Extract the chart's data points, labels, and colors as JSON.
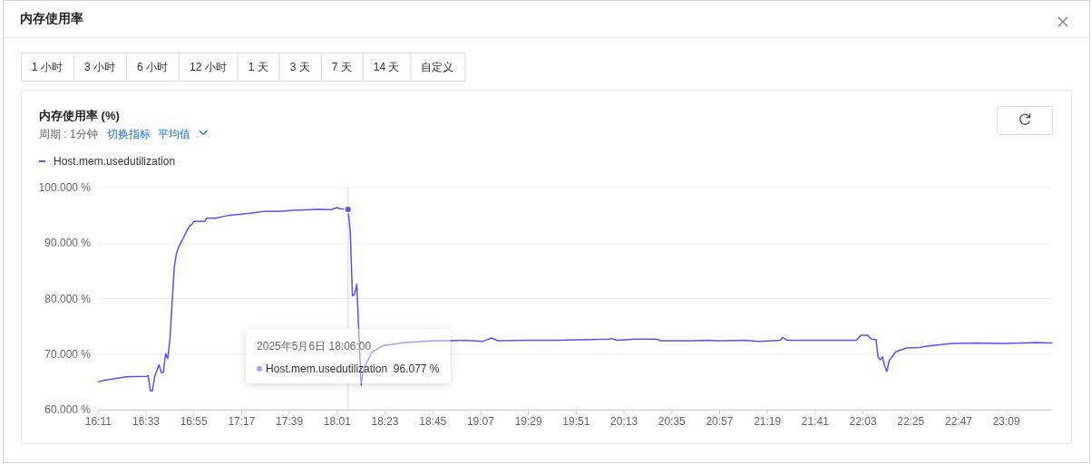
{
  "chart_data": {
    "type": "line",
    "title": "内存使用率 (%)",
    "subtitle": "周期 : 1分钟",
    "annotations": [
      "内存使用率",
      "1 小时",
      "3 小时",
      "6 小时",
      "12 小时",
      "1 天",
      "3 天",
      "7 天",
      "14 天",
      "自定义",
      "切换指标",
      "平均值",
      "2025年5月6日 18:06:00\nHost.mem.usedutilization  96.077 %"
    ],
    "x": [
      "2025-05-06T16:11",
      "2025-05-06T16:14",
      "2025-05-06T16:24",
      "2025-05-06T16:33",
      "2025-05-06T16:34",
      "2025-05-06T16:35",
      "2025-05-06T16:36",
      "2025-05-06T16:37",
      "2025-05-06T16:39",
      "2025-05-06T16:40",
      "2025-05-06T16:41",
      "2025-05-06T16:42",
      "2025-05-06T16:43",
      "2025-05-06T16:44",
      "2025-05-06T16:45",
      "2025-05-06T16:46",
      "2025-05-06T16:47",
      "2025-05-06T16:48",
      "2025-05-06T16:50",
      "2025-05-06T16:52",
      "2025-05-06T16:53",
      "2025-05-06T16:54",
      "2025-05-06T16:55",
      "2025-05-06T17:00",
      "2025-05-06T17:01",
      "2025-05-06T17:05",
      "2025-05-06T17:11",
      "2025-05-06T17:16",
      "2025-05-06T17:21",
      "2025-05-06T17:27",
      "2025-05-06T17:34",
      "2025-05-06T17:41",
      "2025-05-06T17:53",
      "2025-05-06T17:58",
      "2025-05-06T18:01",
      "2025-05-06T18:02",
      "2025-05-06T18:06",
      "2025-05-06T18:07",
      "2025-05-06T18:08",
      "2025-05-06T18:09",
      "2025-05-06T18:10",
      "2025-05-06T18:12",
      "2025-05-06T18:13",
      "2025-05-06T18:17",
      "2025-05-06T18:22",
      "2025-05-06T18:32",
      "2025-05-06T18:46",
      "2025-05-06T18:53",
      "2025-05-06T19:00",
      "2025-05-06T19:08",
      "2025-05-06T19:12",
      "2025-05-06T19:15",
      "2025-05-06T19:28",
      "2025-05-06T19:42",
      "2025-05-06T19:56",
      "2025-05-06T20:06",
      "2025-05-06T20:07",
      "2025-05-06T20:10",
      "2025-05-06T20:18",
      "2025-05-06T20:28",
      "2025-05-06T20:30",
      "2025-05-06T20:44",
      "2025-05-06T20:51",
      "2025-05-06T20:57",
      "2025-05-06T21:09",
      "2025-05-06T21:15",
      "2025-05-06T21:25",
      "2025-05-06T21:26",
      "2025-05-06T21:28",
      "2025-05-06T21:45",
      "2025-05-06T22:00",
      "2025-05-06T22:02",
      "2025-05-06T22:05",
      "2025-05-06T22:07",
      "2025-05-06T22:09",
      "2025-05-06T22:10",
      "2025-05-06T22:11",
      "2025-05-06T22:12",
      "2025-05-06T22:13",
      "2025-05-06T22:14",
      "2025-05-06T22:15",
      "2025-05-06T22:18",
      "2025-05-06T22:23",
      "2025-05-06T22:29",
      "2025-05-06T22:34",
      "2025-05-06T22:44",
      "2025-05-06T22:55",
      "2025-05-06T23:08",
      "2025-05-06T23:23",
      "2025-05-06T23:30"
    ],
    "series": [
      {
        "name": "Host.mem.usedutilization",
        "color": "#5b50f3",
        "values": [
          65.0,
          65.3,
          65.9,
          66.0,
          66.1,
          63.4,
          63.4,
          66.0,
          68.1,
          66.7,
          66.7,
          70.1,
          69.2,
          72.6,
          79.1,
          85.6,
          88.1,
          89.3,
          90.8,
          92.4,
          93.1,
          93.3,
          93.9,
          93.9,
          94.5,
          94.5,
          95.0,
          95.2,
          95.4,
          95.7,
          95.7,
          95.9,
          96.1,
          96.0,
          96.4,
          96.2,
          96.077,
          92.2,
          80.5,
          80.8,
          82.6,
          64.4,
          67.1,
          70.4,
          71.5,
          72.1,
          72.4,
          72.4,
          72.5,
          72.3,
          72.9,
          72.4,
          72.5,
          72.5,
          72.6,
          72.7,
          72.8,
          72.5,
          72.7,
          72.7,
          72.4,
          72.4,
          72.5,
          72.4,
          72.5,
          72.3,
          72.5,
          73.0,
          72.5,
          72.5,
          72.5,
          73.4,
          73.4,
          72.7,
          72.6,
          69.4,
          69.0,
          69.5,
          67.8,
          66.9,
          68.8,
          70.4,
          71.1,
          71.2,
          71.5,
          71.9,
          72.0,
          71.9,
          72.1,
          72.0
        ]
      },
      {
        "type": "scatter",
        "color": "#5b50f3",
        "x": [
          "2025-05-06T18:06"
        ],
        "values": [
          96.077
        ]
      }
    ],
    "xlim": [
      "2025-05-06T16:11",
      "2025-05-06T23:30"
    ],
    "xticks": [
      {
        "value": "2025-05-06T16:11",
        "label": "16:11"
      },
      {
        "value": "2025-05-06T16:33",
        "label": "16:33"
      },
      {
        "value": "2025-05-06T16:55",
        "label": "16:55"
      },
      {
        "value": "2025-05-06T17:17",
        "label": "17:17"
      },
      {
        "value": "2025-05-06T17:39",
        "label": "17:39"
      },
      {
        "value": "2025-05-06T18:01",
        "label": "18:01"
      },
      {
        "value": "2025-05-06T18:23",
        "label": "18:23"
      },
      {
        "value": "2025-05-06T18:45",
        "label": "18:45"
      },
      {
        "value": "2025-05-06T19:07",
        "label": "19:07"
      },
      {
        "value": "2025-05-06T19:29",
        "label": "19:29"
      },
      {
        "value": "2025-05-06T19:51",
        "label": "19:51"
      },
      {
        "value": "2025-05-06T20:13",
        "label": "20:13"
      },
      {
        "value": "2025-05-06T20:35",
        "label": "20:35"
      },
      {
        "value": "2025-05-06T20:57",
        "label": "20:57"
      },
      {
        "value": "2025-05-06T21:19",
        "label": "21:19"
      },
      {
        "value": "2025-05-06T21:41",
        "label": "21:41"
      },
      {
        "value": "2025-05-06T22:03",
        "label": "22:03"
      },
      {
        "value": "2025-05-06T22:25",
        "label": "22:25"
      },
      {
        "value": "2025-05-06T22:47",
        "label": "22:47"
      },
      {
        "value": "2025-05-06T23:09",
        "label": "23:09"
      }
    ],
    "ylim": [
      60,
      100
    ],
    "yticks": [
      {
        "value": 60,
        "label": "60.000 %"
      },
      {
        "value": 70,
        "label": "70.000 %"
      },
      {
        "value": 80,
        "label": "80.000 %"
      },
      {
        "value": 90,
        "label": "90.000 %"
      },
      {
        "value": 100,
        "label": "100.000 %"
      }
    ],
    "ref_lines": [
      {
        "axis": "x",
        "value": "2025-05-06T18:06",
        "color": "#d6d6d6"
      }
    ],
    "grid": "y",
    "legend": "top left"
  }
}
